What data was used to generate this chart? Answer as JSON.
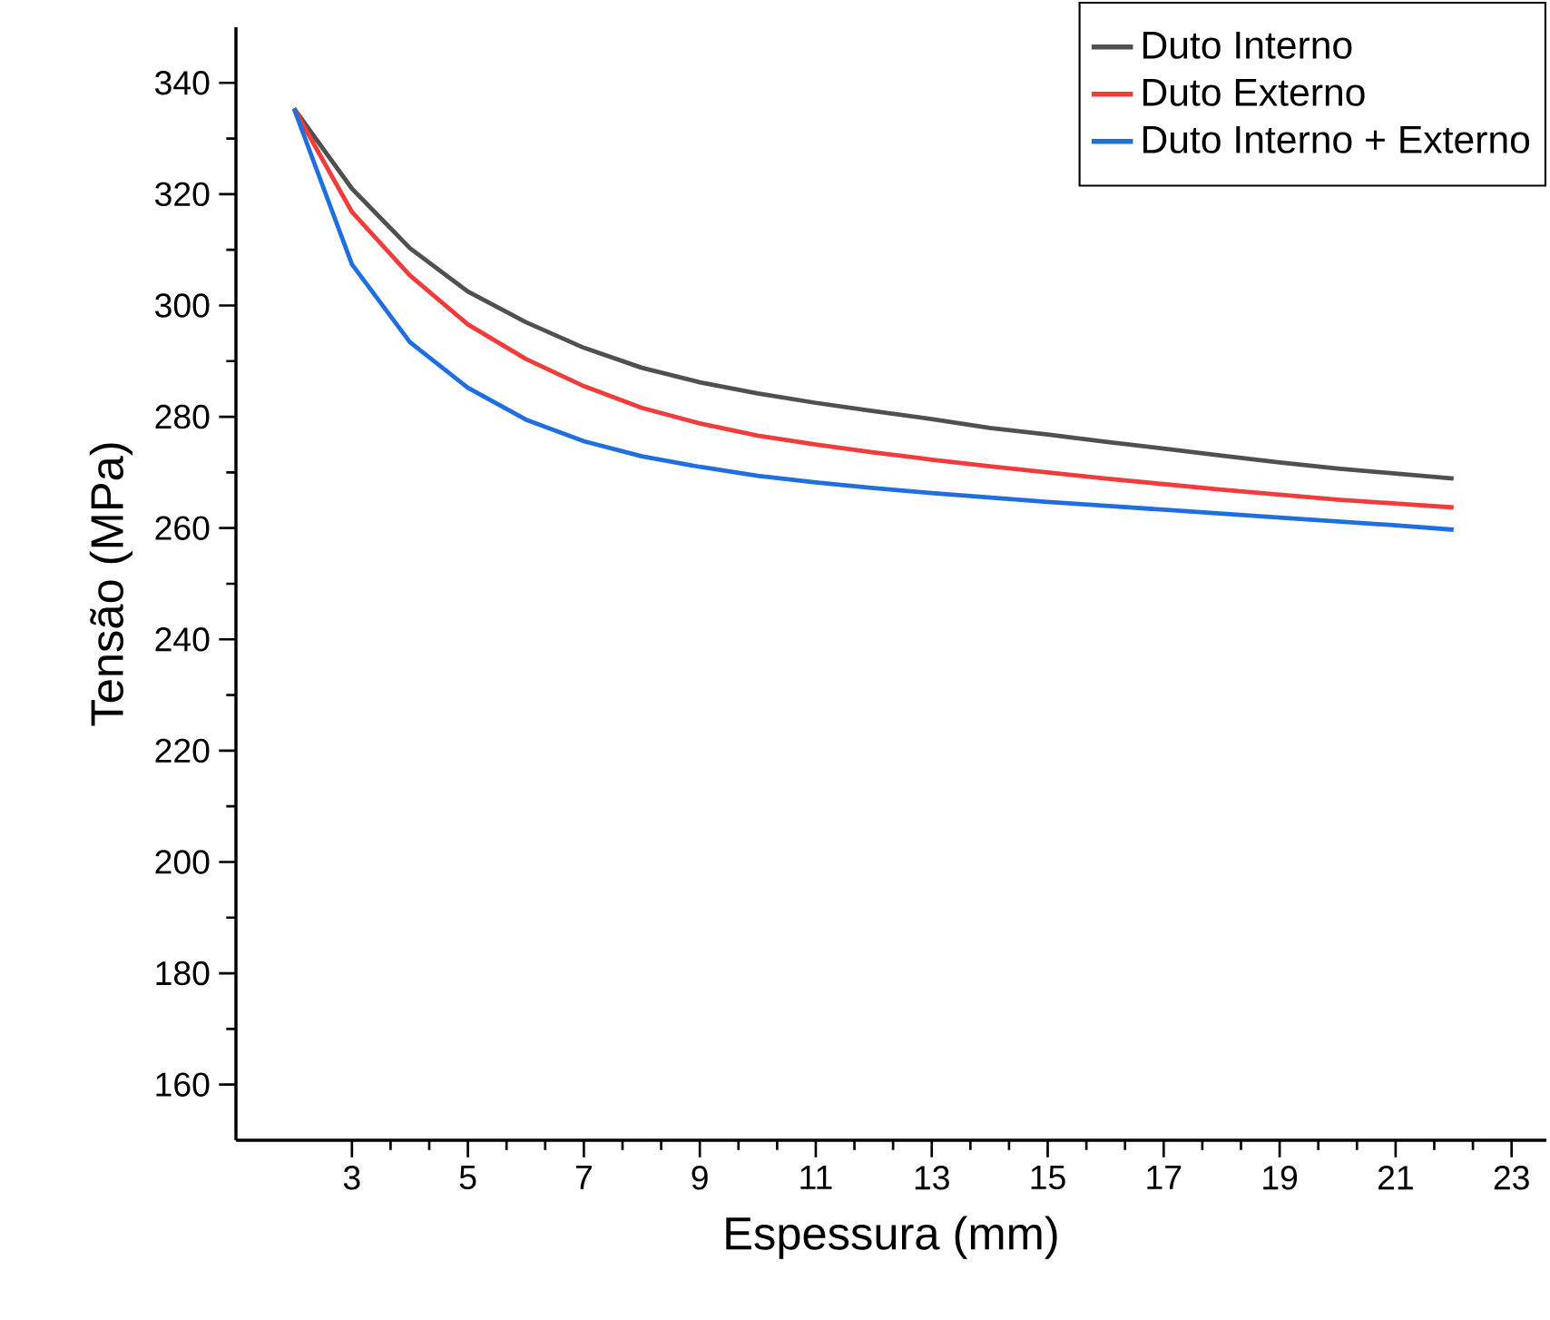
{
  "chart_data": {
    "type": "line",
    "xlabel": "Espessura (mm)",
    "ylabel": "Tensão (MPa)",
    "x": [
      2,
      3,
      4,
      5,
      6,
      7,
      8,
      9,
      10,
      11,
      12,
      13,
      14,
      15,
      16,
      17,
      18,
      19,
      20,
      21,
      22
    ],
    "xlim": [
      1,
      23.6
    ],
    "ylim": [
      150,
      350
    ],
    "xticks": [
      3,
      5,
      7,
      9,
      11,
      13,
      15,
      17,
      19,
      21,
      23
    ],
    "yticks": [
      160,
      180,
      200,
      220,
      240,
      260,
      280,
      300,
      320,
      340
    ],
    "grid": false,
    "legend": "top right",
    "marker": "none",
    "line_style": "solid",
    "series": [
      {
        "name": "Duto Interno",
        "color": "#505050",
        "values": [
          335.4,
          321,
          310.3,
          302.5,
          297,
          292.4,
          288.8,
          286.2,
          284.2,
          282.5,
          281,
          279.6,
          278,
          276.8,
          275.5,
          274.3,
          273,
          271.8,
          270.7,
          269.8,
          268.9
        ]
      },
      {
        "name": "Duto Externo",
        "color": "#f23c3c",
        "values": [
          335.4,
          316.8,
          305.4,
          296.6,
          290.4,
          285.5,
          281.6,
          278.8,
          276.6,
          275,
          273.6,
          272.3,
          271.1,
          270,
          268.9,
          267.9,
          266.9,
          266,
          265.1,
          264.4,
          263.7
        ]
      },
      {
        "name": "Duto Interno + Externo",
        "color": "#1f6fe0",
        "values": [
          335.4,
          307.4,
          293.4,
          285.2,
          279.5,
          275.6,
          272.9,
          271,
          269.4,
          268.2,
          267.2,
          266.3,
          265.5,
          264.7,
          264,
          263.3,
          262.6,
          261.9,
          261.2,
          260.5,
          259.7
        ]
      }
    ]
  }
}
